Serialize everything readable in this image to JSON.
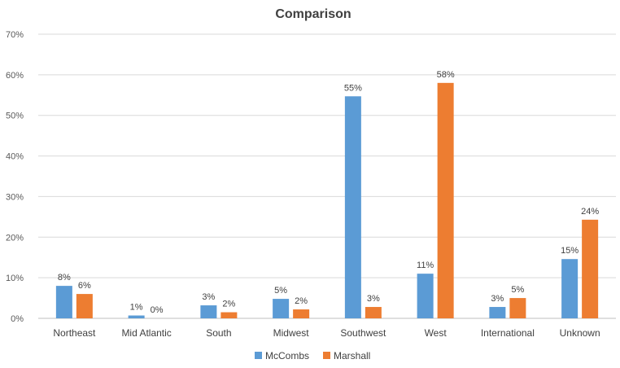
{
  "chart_data": {
    "type": "bar",
    "title": "Comparison",
    "categories": [
      "Northeast",
      "Mid Atlantic",
      "South",
      "Midwest",
      "Southwest",
      "West",
      "International",
      "Unknown"
    ],
    "series": [
      {
        "name": "McCombs",
        "color": "#5b9bd5",
        "values": [
          8,
          0.7,
          3.2,
          4.8,
          54.7,
          11,
          2.8,
          14.6
        ],
        "labels": [
          "8%",
          "1%",
          "3%",
          "5%",
          "55%",
          "11%",
          "3%",
          "15%"
        ]
      },
      {
        "name": "Marshall",
        "color": "#ed7d31",
        "values": [
          6,
          0,
          1.5,
          2.2,
          2.8,
          58,
          5,
          24.3
        ],
        "labels": [
          "6%",
          "0%",
          "2%",
          "2%",
          "3%",
          "58%",
          "5%",
          "24%"
        ]
      }
    ],
    "ylim": [
      0,
      70
    ],
    "yticks": [
      "0%",
      "10%",
      "20%",
      "30%",
      "40%",
      "50%",
      "60%",
      "70%"
    ],
    "xlabel": "",
    "ylabel": "",
    "grid": true,
    "legend": "bottom"
  }
}
